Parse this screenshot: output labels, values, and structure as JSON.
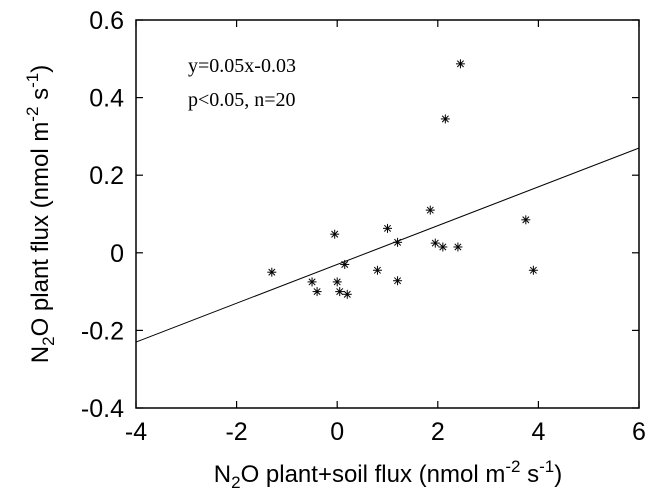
{
  "chart_data": {
    "type": "scatter",
    "title": "",
    "xlabel": {
      "parts": [
        "N",
        "2",
        "O plant+soil flux (nmol m",
        "-2",
        " s",
        "-1",
        ")"
      ]
    },
    "ylabel": {
      "parts": [
        "N",
        "2",
        "O plant flux (nmol m",
        "-2",
        " s",
        "-1",
        ")"
      ]
    },
    "xlim": [
      -4,
      6
    ],
    "ylim": [
      -0.4,
      0.6
    ],
    "xticks": [
      -4,
      -2,
      0,
      2,
      4,
      6
    ],
    "xtick_labels": [
      "-4",
      "-2",
      "0",
      "2",
      "4",
      "6"
    ],
    "yticks": [
      -0.4,
      -0.2,
      0,
      0.2,
      0.4,
      0.6
    ],
    "ytick_labels": [
      "-0.4",
      "-0.2",
      "0",
      "0.2",
      "0.4",
      "0.6"
    ],
    "grid": false,
    "marker": "asterisk",
    "points": [
      {
        "x": -1.3,
        "y": -0.05
      },
      {
        "x": -0.5,
        "y": -0.075
      },
      {
        "x": -0.4,
        "y": -0.1
      },
      {
        "x": -0.05,
        "y": 0.048
      },
      {
        "x": 0.0,
        "y": -0.075
      },
      {
        "x": 0.05,
        "y": -0.1
      },
      {
        "x": 0.15,
        "y": -0.03
      },
      {
        "x": 0.2,
        "y": -0.107
      },
      {
        "x": 0.8,
        "y": -0.045
      },
      {
        "x": 1.0,
        "y": 0.063
      },
      {
        "x": 1.2,
        "y": 0.027
      },
      {
        "x": 1.2,
        "y": -0.072
      },
      {
        "x": 1.85,
        "y": 0.11
      },
      {
        "x": 1.95,
        "y": 0.025
      },
      {
        "x": 2.1,
        "y": 0.015
      },
      {
        "x": 2.15,
        "y": 0.345
      },
      {
        "x": 2.4,
        "y": 0.015
      },
      {
        "x": 2.45,
        "y": 0.487
      },
      {
        "x": 3.75,
        "y": 0.085
      },
      {
        "x": 3.9,
        "y": -0.045
      }
    ],
    "fit_line": {
      "slope": 0.05,
      "intercept": -0.03,
      "x_range": [
        -4,
        6
      ]
    },
    "annotations": [
      "y=0.05x-0.03",
      "p<0.05, n=20"
    ]
  }
}
